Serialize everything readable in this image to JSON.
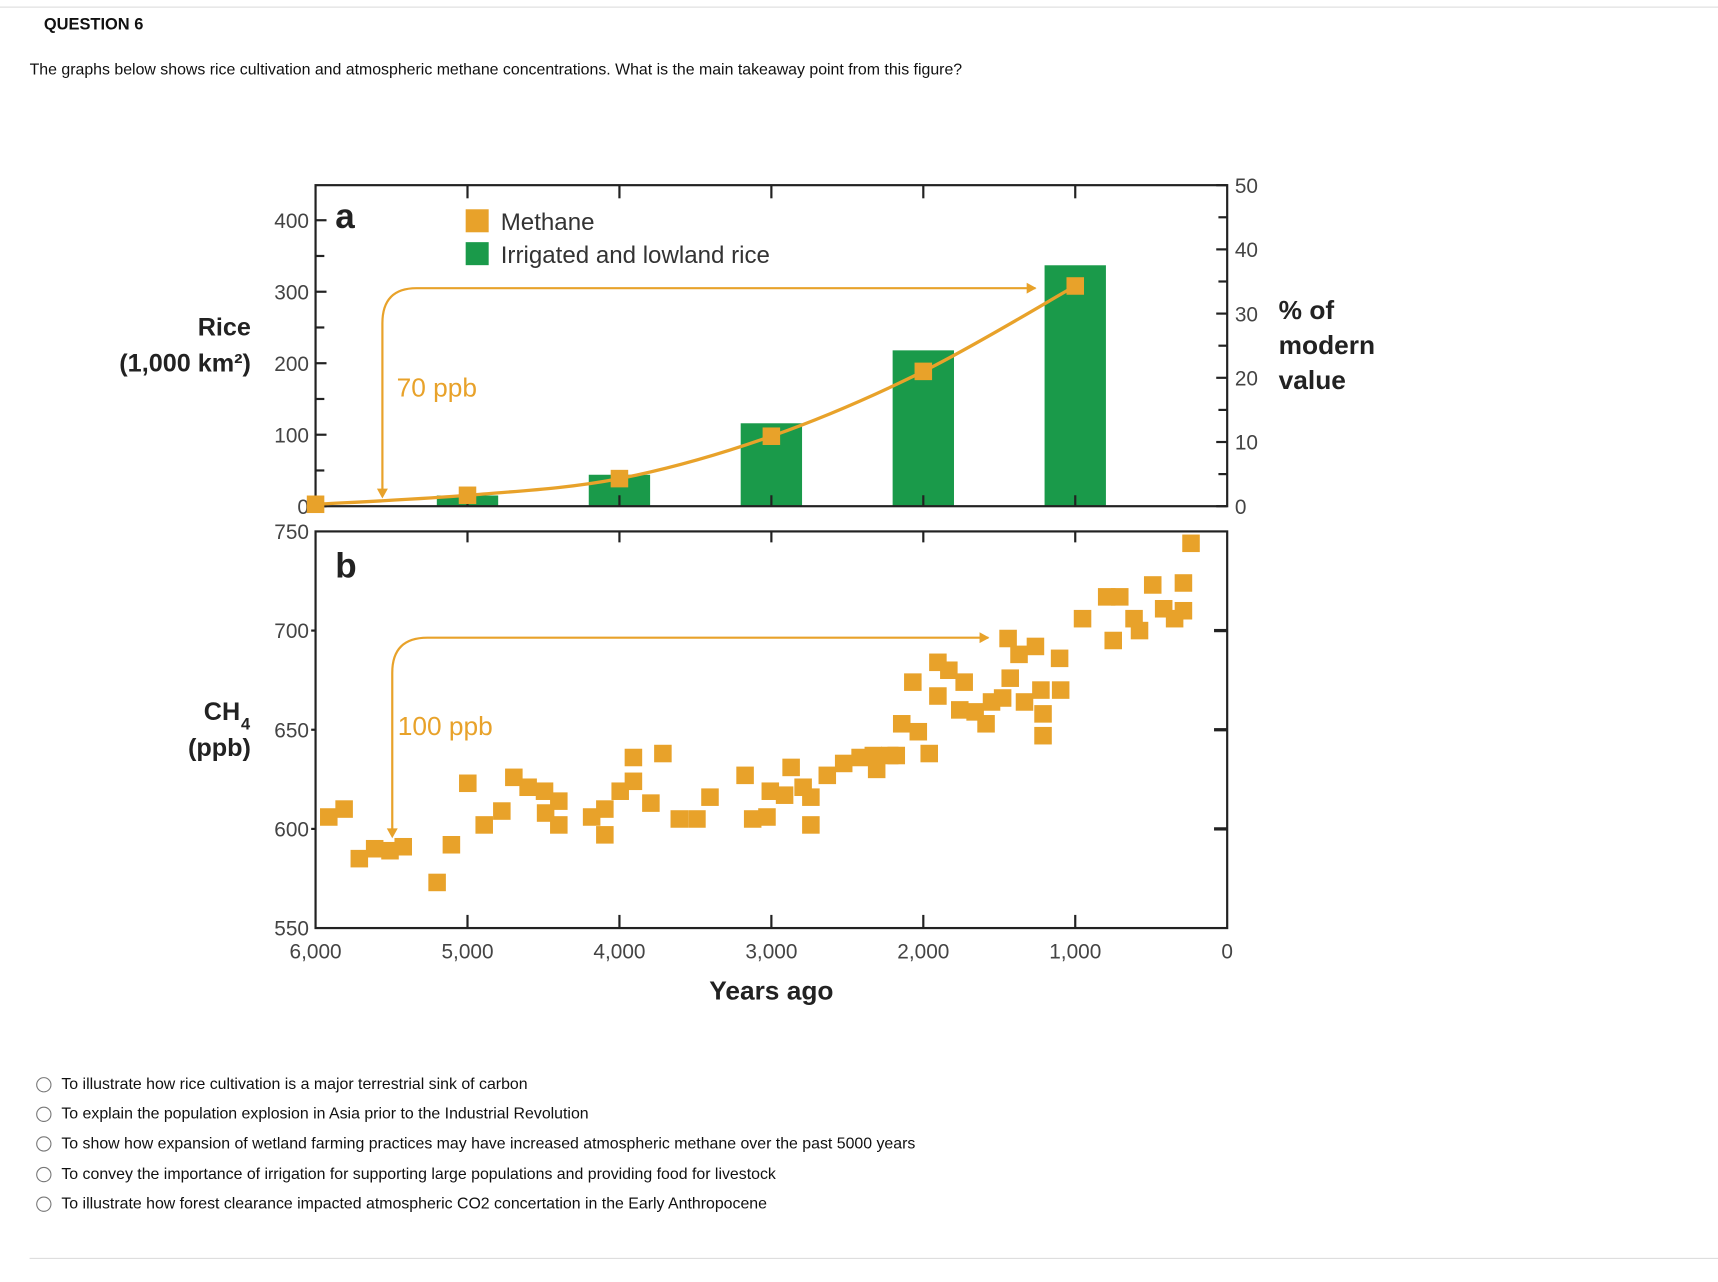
{
  "question": {
    "title": "QUESTION 6",
    "text": "The graphs below shows rice cultivation and atmospheric methane concentrations. What is the main takeaway point from this figure?",
    "options": [
      "To illustrate how rice cultivation is a major terrestrial sink of carbon",
      "To explain the population explosion in Asia prior to the Industrial Revolution",
      "To show how expansion of wetland farming practices may have increased atmospheric methane over the past 5000 years",
      "To convey the importance of irrigation for supporting large populations and providing food for livestock",
      "To illustrate how forest clearance impacted atmospheric CO2 concertation in the Early Anthropocene"
    ]
  },
  "chart_data": [
    {
      "type": "bar",
      "panel_label": "a",
      "xlabel": "Years ago",
      "x_reversed": true,
      "xlim": [
        6000,
        0
      ],
      "xticks": [
        "6,000",
        "5,000",
        "4,000",
        "3,000",
        "2,000",
        "1,000",
        "0"
      ],
      "ylabel": "Rice",
      "ylabel_unit": "(1,000 km²)",
      "ylim": [
        0,
        400
      ],
      "yticks": [
        "0",
        "100",
        "200",
        "300",
        "400"
      ],
      "y2label": [
        "% of",
        "modern",
        "value"
      ],
      "y2lim": [
        0,
        50
      ],
      "y2ticks": [
        "0",
        "10",
        "20",
        "30",
        "40",
        "50"
      ],
      "legend": [
        {
          "name": "Methane",
          "color": "#E8A22A"
        },
        {
          "name": "Irrigated and lowland rice",
          "color": "#1A9A4A"
        }
      ],
      "series": [
        {
          "name": "Irrigated and lowland rice",
          "axis": "left",
          "x": [
            5000,
            4000,
            3000,
            2000,
            1000
          ],
          "values": [
            15,
            44,
            116,
            218,
            337
          ]
        },
        {
          "name": "Methane",
          "axis": "right",
          "x": [
            6000,
            5000,
            4000,
            3000,
            2000,
            1000
          ],
          "values": [
            0.3,
            1.7,
            4.3,
            10.9,
            21,
            34.3
          ]
        }
      ],
      "annotation": "70 ppb"
    },
    {
      "type": "scatter",
      "panel_label": "b",
      "xlabel": "Years ago",
      "xlim": [
        6000,
        0
      ],
      "ylabel": "CH",
      "ylabel_sub": "4",
      "ylabel_unit": "(ppb)",
      "ylim": [
        550,
        750
      ],
      "yticks": [
        "550",
        "600",
        "650",
        "700",
        "750"
      ],
      "annotation": "100 ppb",
      "color": "#E8A22A",
      "x": [
        5913,
        5812,
        5712,
        5611,
        5510,
        5423,
        5200,
        5106,
        4998,
        4890,
        4774,
        4695,
        4601,
        4493,
        4486,
        4399,
        4399,
        4183,
        4096,
        4096,
        3995,
        3908,
        3908,
        3793,
        3714,
        3606,
        3490,
        3404,
        3173,
        3123,
        3029,
        3007,
        2913,
        2870,
        2791,
        2740,
        2740,
        2632,
        2524,
        2416,
        2329,
        2307,
        2221,
        2178,
        2142,
        2069,
        2033,
        1961,
        1904,
        1904,
        1832,
        1760,
        1731,
        1659,
        1587,
        1551,
        1478,
        1442,
        1428,
        1370,
        1334,
        1262,
        1226,
        1212,
        1212,
        1103,
        1096,
        952,
        793,
        750,
        707,
        613,
        577,
        490,
        418,
        346,
        288,
        288,
        238
      ],
      "y": [
        606,
        610,
        585,
        590,
        589,
        591,
        573,
        592,
        623,
        602,
        609,
        626,
        621,
        619,
        608,
        602,
        614,
        606,
        597,
        610,
        619,
        636,
        624,
        613,
        638,
        605,
        605,
        616,
        627,
        605,
        606,
        619,
        617,
        631,
        621,
        602,
        616,
        627,
        633,
        636,
        637,
        630,
        637,
        637,
        653,
        674,
        649,
        638,
        684,
        667,
        680,
        660,
        674,
        659,
        653,
        664,
        666,
        696,
        676,
        688,
        664,
        692,
        670,
        647,
        658,
        686,
        670,
        706,
        717,
        695,
        717,
        706,
        700,
        723,
        711,
        706,
        724,
        710,
        744
      ]
    }
  ]
}
